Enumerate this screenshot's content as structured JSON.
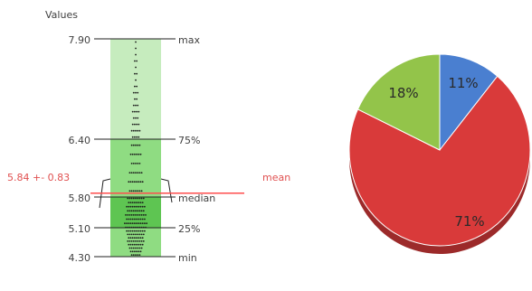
{
  "chart_data": [
    {
      "type": "scatter",
      "subtype": "dot-strip with box summary",
      "ylabel": "Values",
      "ylim": [
        4.3,
        7.9
      ],
      "ticks": [
        "7.90",
        "6.40",
        "5.80",
        "5.10",
        "4.30"
      ],
      "summary": {
        "max": {
          "value": 7.9,
          "tick": "7.90",
          "label": "max"
        },
        "q3": {
          "value": 6.4,
          "tick": "6.40",
          "label": "75%"
        },
        "median": {
          "value": 5.8,
          "tick": "5.80",
          "label": "median"
        },
        "q1": {
          "value": 5.1,
          "tick": "5.10",
          "label": "25%"
        },
        "min": {
          "value": 4.3,
          "tick": "4.30",
          "label": "min"
        },
        "mean": {
          "value": 5.84,
          "sd": 0.83,
          "text": "5.84 +- 0.83",
          "label": "mean"
        }
      },
      "colors": {
        "band_light": "#c6ecbe",
        "band_mid": "#8fdc82",
        "band_dark": "#5ec552",
        "mean": "#ff4d4d",
        "dots": "#1a1a1a",
        "lines": "#222222"
      }
    },
    {
      "type": "pie",
      "slices": [
        {
          "value": 11,
          "label": "11%",
          "color": "#4a7fd0"
        },
        {
          "value": 71,
          "label": "71%",
          "color": "#d93a3a"
        },
        {
          "value": 18,
          "label": "18%",
          "color": "#93c44a"
        }
      ]
    }
  ]
}
